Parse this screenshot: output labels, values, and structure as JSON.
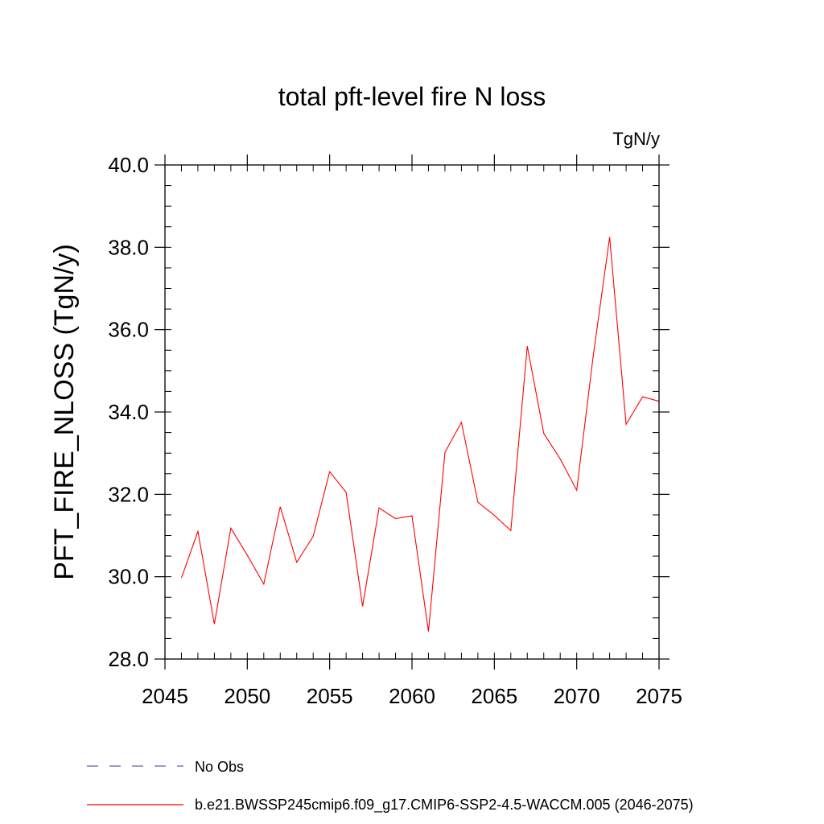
{
  "chart_data": {
    "type": "line",
    "title": "total pft-level fire N loss",
    "units": "TgN/y",
    "ylabel": "PFT_FIRE_NLOSS  (TgN/y)",
    "xlabel": "",
    "xlim": [
      2045,
      2075
    ],
    "ylim": [
      28.0,
      40.0
    ],
    "xticks": [
      2045,
      2050,
      2055,
      2060,
      2065,
      2070,
      2075
    ],
    "xtick_labels": [
      "2045",
      "2050",
      "2055",
      "2060",
      "2065",
      "2070",
      "2075"
    ],
    "yticks": [
      28.0,
      30.0,
      32.0,
      34.0,
      36.0,
      38.0,
      40.0
    ],
    "ytick_labels": [
      "28.0",
      "30.0",
      "32.0",
      "34.0",
      "36.0",
      "38.0",
      "40.0"
    ],
    "y_minor_step": 0.5,
    "x_minor_step": 1,
    "series": [
      {
        "name": "b.e21.BWSSP245cmip6.f09_g17.CMIP6-SSP2-4.5-WACCM.005 (2046-2075)",
        "color": "#ff0000",
        "style": "solid",
        "x": [
          2046,
          2047,
          2048,
          2049,
          2050,
          2051,
          2052,
          2053,
          2054,
          2055,
          2056,
          2057,
          2058,
          2059,
          2060,
          2061,
          2062,
          2063,
          2064,
          2065,
          2066,
          2067,
          2068,
          2069,
          2070,
          2071,
          2072,
          2073,
          2074,
          2075
        ],
        "values": [
          29.97,
          31.1,
          28.85,
          31.18,
          30.52,
          29.82,
          31.7,
          30.35,
          30.98,
          32.55,
          32.05,
          29.28,
          31.67,
          31.41,
          31.48,
          28.67,
          33.02,
          33.75,
          31.81,
          31.49,
          31.12,
          35.6,
          33.48,
          32.86,
          32.1,
          35.35,
          38.25,
          33.7,
          34.37,
          34.26
        ]
      }
    ],
    "legend": [
      {
        "label": "No Obs",
        "color": "#6e5aa8",
        "style": "dashed"
      },
      {
        "label": "b.e21.BWSSP245cmip6.f09_g17.CMIP6-SSP2-4.5-WACCM.005 (2046-2075)",
        "color": "#ff0000",
        "style": "solid"
      }
    ]
  }
}
